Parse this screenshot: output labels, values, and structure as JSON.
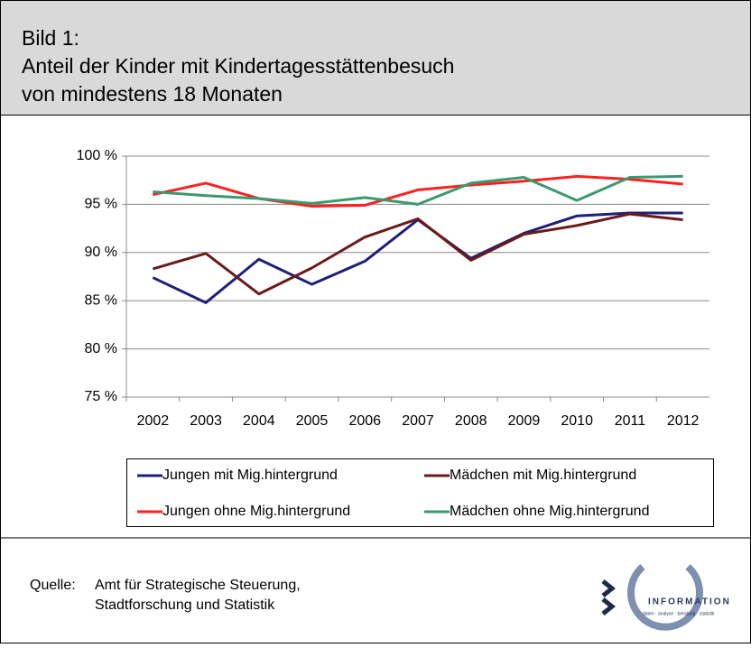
{
  "header": {
    "label": "Bild 1:",
    "title": [
      "Anteil der Kinder mit Kindertagesstättenbesuch",
      "von mindestens 18 Monaten"
    ]
  },
  "chart_data": {
    "type": "line",
    "categories": [
      "2002",
      "2003",
      "2004",
      "2005",
      "2006",
      "2007",
      "2008",
      "2009",
      "2010",
      "2011",
      "2012"
    ],
    "series": [
      {
        "name": "Jungen mit Mig.hintergrund",
        "color": "#1f1f7a",
        "values": [
          87.4,
          84.8,
          89.3,
          86.7,
          89.1,
          93.4,
          89.4,
          92.0,
          93.8,
          94.1,
          94.1
        ]
      },
      {
        "name": "Mädchen mit Mig.hintergrund",
        "color": "#6b1a1a",
        "values": [
          88.3,
          89.9,
          85.7,
          88.4,
          91.6,
          93.5,
          89.2,
          91.9,
          92.8,
          94.0,
          93.4
        ]
      },
      {
        "name": "Jungen ohne Mig.hintergrund",
        "color": "#ff2020",
        "values": [
          96.0,
          97.2,
          95.6,
          94.8,
          94.9,
          96.5,
          97.0,
          97.4,
          97.9,
          97.6,
          97.1
        ]
      },
      {
        "name": "Mädchen ohne Mig.hintergrund",
        "color": "#3a9a6e",
        "values": [
          96.3,
          95.9,
          95.6,
          95.1,
          95.7,
          95.0,
          97.2,
          97.8,
          95.4,
          97.8,
          97.9
        ]
      }
    ],
    "ylim": [
      75,
      100
    ],
    "yticks": [
      {
        "value": 75,
        "label": "75 %"
      },
      {
        "value": 80,
        "label": "80 %"
      },
      {
        "value": 85,
        "label": "85 %"
      },
      {
        "value": 90,
        "label": "90 %"
      },
      {
        "value": 95,
        "label": "95 %"
      },
      {
        "value": 100,
        "label": "100 %"
      }
    ],
    "grid": true
  },
  "source": {
    "label": "Quelle:",
    "lines": [
      "Amt für Strategische Steuerung,",
      "Stadtforschung und Statistik"
    ]
  },
  "logo": {
    "name": "INFORMATION",
    "tagline": "daten · analyse · beratung · statistik"
  }
}
